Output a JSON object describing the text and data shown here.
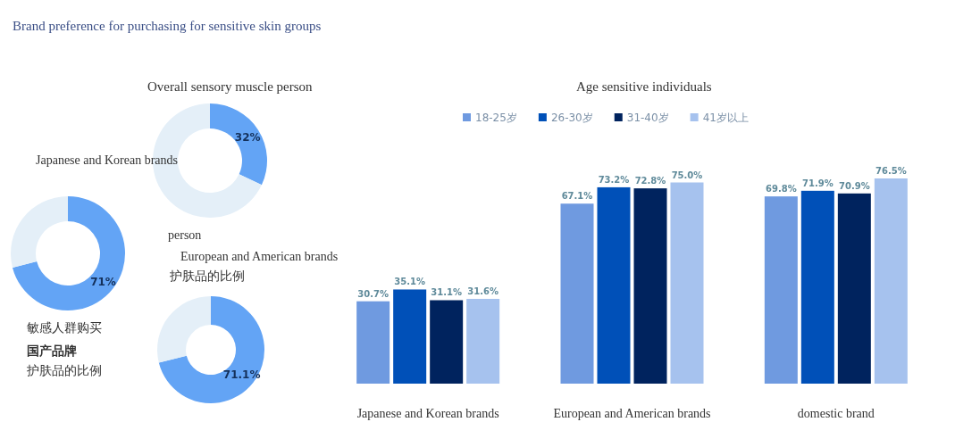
{
  "chart_data": [
    {
      "type": "donut",
      "title": "Brand preference for purchasing for sensitive skin groups",
      "subtitle": "Overall sensory muscle person",
      "annotations": [
        "Japanese and Korean brands"
      ],
      "categories": [
        null,
        null
      ],
      "values": [
        32,
        68
      ],
      "value_labels": [
        "32%",
        null
      ],
      "colors": [
        "#63a4f5",
        "#e4eff8"
      ]
    },
    {
      "type": "donut",
      "annotations": [
        "person",
        "European and American brands",
        "护肤品的比例"
      ],
      "categories": [
        null,
        null
      ],
      "values": [
        71,
        29
      ],
      "value_labels": [
        "71%",
        null
      ],
      "colors": [
        "#63a4f5",
        "#e4eff8"
      ]
    },
    {
      "type": "donut",
      "annotations": [
        "敏感人群购买",
        "**国产品牌**",
        "护肤品的比例"
      ],
      "categories": [
        null,
        null
      ],
      "values": [
        71.1,
        28.9
      ],
      "value_labels": [
        "71.1%",
        null
      ],
      "colors": [
        "#63a4f5",
        "#e4eff8"
      ]
    },
    {
      "type": "bar",
      "title": "Age sensitive individuals",
      "legend": "top",
      "categories": [
        "Japanese and Korean brands",
        "European and American brands",
        "domestic brand"
      ],
      "series": [
        {
          "name": "18-25岁",
          "color": "#6f9ae0",
          "values": [
            30.7,
            67.1,
            69.8
          ],
          "value_labels": [
            "30.7%",
            "67.1%",
            "69.8%"
          ]
        },
        {
          "name": "26-30岁",
          "color": "#0050b8",
          "values": [
            35.1,
            73.2,
            71.9
          ],
          "value_labels": [
            "35.1%",
            "73.2%",
            "71.9%"
          ]
        },
        {
          "name": "31-40岁",
          "color": "#00235e",
          "values": [
            31.1,
            72.8,
            70.9
          ],
          "value_labels": [
            "31.1%",
            "72.8%",
            "70.9%"
          ]
        },
        {
          "name": "41岁以上",
          "color": "#a6c2ee",
          "values": [
            31.6,
            75.0,
            76.5
          ],
          "value_labels": [
            "31.6%",
            "75.0%",
            "76.5%"
          ]
        }
      ]
    }
  ]
}
